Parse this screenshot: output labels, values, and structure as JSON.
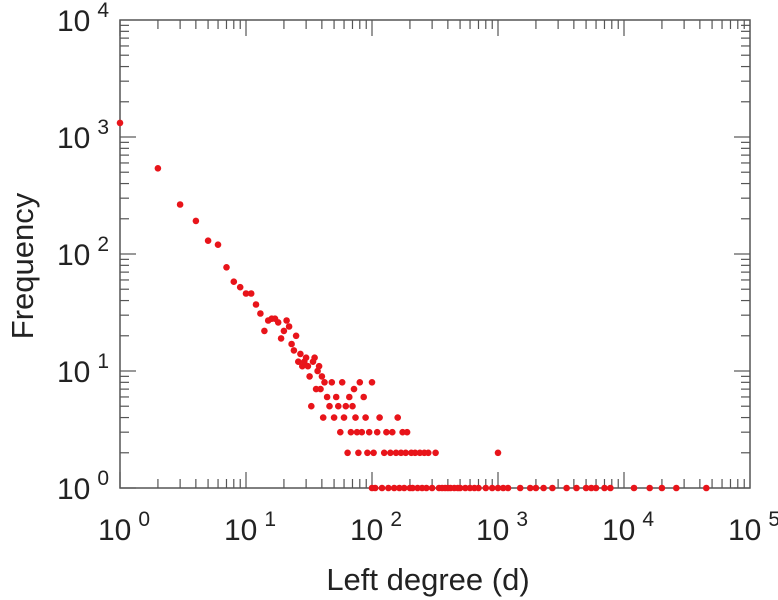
{
  "chart_data": {
    "type": "scatter",
    "title": "",
    "xlabel": "Left degree (d)",
    "ylabel": "Frequency",
    "x_scale": "log",
    "y_scale": "log",
    "xlim": [
      1,
      100000
    ],
    "ylim": [
      1,
      10000
    ],
    "grid": false,
    "marker_color": "#e8141a",
    "axis_color": "#555555",
    "x_ticks": [
      {
        "base": "10",
        "exp": "0"
      },
      {
        "base": "10",
        "exp": "1"
      },
      {
        "base": "10",
        "exp": "2"
      },
      {
        "base": "10",
        "exp": "3"
      },
      {
        "base": "10",
        "exp": "4"
      },
      {
        "base": "10",
        "exp": "5"
      }
    ],
    "y_ticks": [
      {
        "base": "10",
        "exp": "0"
      },
      {
        "base": "10",
        "exp": "1"
      },
      {
        "base": "10",
        "exp": "2"
      },
      {
        "base": "10",
        "exp": "3"
      },
      {
        "base": "10",
        "exp": "4"
      }
    ],
    "points": [
      [
        1,
        1320
      ],
      [
        2,
        540
      ],
      [
        3,
        265
      ],
      [
        4,
        192
      ],
      [
        5,
        130
      ],
      [
        6,
        120
      ],
      [
        7,
        77
      ],
      [
        8,
        58
      ],
      [
        9,
        52
      ],
      [
        10,
        46
      ],
      [
        11,
        46
      ],
      [
        12,
        37
      ],
      [
        13,
        31
      ],
      [
        14,
        22
      ],
      [
        15,
        27
      ],
      [
        16,
        28
      ],
      [
        17,
        28
      ],
      [
        18,
        26
      ],
      [
        19,
        19
      ],
      [
        20,
        22
      ],
      [
        21,
        27
      ],
      [
        22,
        24
      ],
      [
        23,
        17
      ],
      [
        24,
        15
      ],
      [
        25,
        20
      ],
      [
        26,
        12
      ],
      [
        27,
        14
      ],
      [
        28,
        11
      ],
      [
        29,
        12
      ],
      [
        30,
        13
      ],
      [
        31,
        11
      ],
      [
        32,
        9
      ],
      [
        33,
        5
      ],
      [
        34,
        12
      ],
      [
        35,
        13
      ],
      [
        36,
        7
      ],
      [
        37,
        10
      ],
      [
        38,
        11
      ],
      [
        39,
        7
      ],
      [
        40,
        9
      ],
      [
        41,
        4
      ],
      [
        42,
        8
      ],
      [
        44,
        6
      ],
      [
        46,
        5
      ],
      [
        48,
        8
      ],
      [
        50,
        4
      ],
      [
        52,
        6
      ],
      [
        54,
        5
      ],
      [
        56,
        3
      ],
      [
        58,
        8
      ],
      [
        60,
        4
      ],
      [
        62,
        5
      ],
      [
        64,
        2
      ],
      [
        66,
        6
      ],
      [
        68,
        3
      ],
      [
        70,
        5
      ],
      [
        72,
        7
      ],
      [
        74,
        4
      ],
      [
        76,
        3
      ],
      [
        78,
        2
      ],
      [
        80,
        8
      ],
      [
        83,
        3
      ],
      [
        86,
        6
      ],
      [
        89,
        4
      ],
      [
        92,
        2
      ],
      [
        95,
        3
      ],
      [
        100,
        1
      ],
      [
        100,
        8
      ],
      [
        103,
        2
      ],
      [
        106,
        1
      ],
      [
        110,
        3
      ],
      [
        115,
        4
      ],
      [
        120,
        1
      ],
      [
        125,
        2
      ],
      [
        130,
        3
      ],
      [
        135,
        1
      ],
      [
        140,
        2
      ],
      [
        145,
        3
      ],
      [
        150,
        1
      ],
      [
        155,
        2
      ],
      [
        160,
        4
      ],
      [
        165,
        1
      ],
      [
        170,
        2
      ],
      [
        175,
        3
      ],
      [
        180,
        1
      ],
      [
        185,
        2
      ],
      [
        190,
        3
      ],
      [
        200,
        1
      ],
      [
        205,
        2
      ],
      [
        210,
        1
      ],
      [
        220,
        2
      ],
      [
        230,
        1
      ],
      [
        240,
        2
      ],
      [
        250,
        1
      ],
      [
        260,
        2
      ],
      [
        270,
        1
      ],
      [
        280,
        2
      ],
      [
        300,
        1
      ],
      [
        320,
        2
      ],
      [
        340,
        1
      ],
      [
        360,
        1
      ],
      [
        380,
        1
      ],
      [
        400,
        1
      ],
      [
        420,
        1
      ],
      [
        450,
        1
      ],
      [
        480,
        1
      ],
      [
        500,
        1
      ],
      [
        550,
        1
      ],
      [
        600,
        1
      ],
      [
        650,
        1
      ],
      [
        700,
        1
      ],
      [
        800,
        1
      ],
      [
        900,
        1
      ],
      [
        1000,
        1
      ],
      [
        1000,
        2
      ],
      [
        1100,
        1
      ],
      [
        1200,
        1
      ],
      [
        1500,
        1
      ],
      [
        1800,
        1
      ],
      [
        2000,
        1
      ],
      [
        2300,
        1
      ],
      [
        2700,
        1
      ],
      [
        3500,
        1
      ],
      [
        4200,
        1
      ],
      [
        5000,
        1
      ],
      [
        5500,
        1
      ],
      [
        6000,
        1
      ],
      [
        7000,
        1
      ],
      [
        7800,
        1
      ],
      [
        12000,
        1
      ],
      [
        16000,
        1
      ],
      [
        20000,
        1
      ],
      [
        26000,
        1
      ],
      [
        45000,
        1
      ]
    ]
  }
}
